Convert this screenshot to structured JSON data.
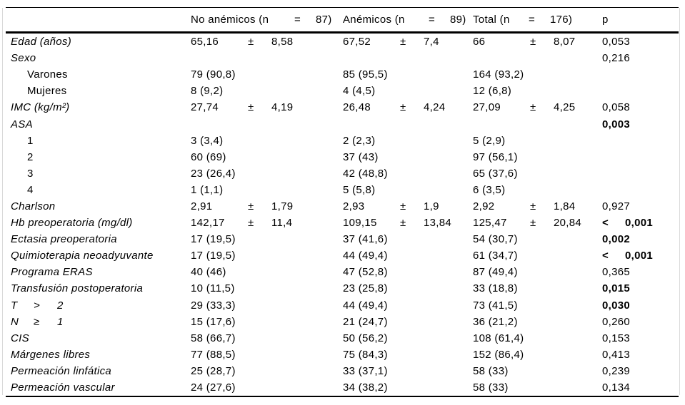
{
  "table": {
    "header": {
      "label": "",
      "columns": [
        {
          "pre": "No anémicos (n",
          "eq": "=",
          "num": "87)"
        },
        {
          "pre": "Anémicos (n",
          "eq": "=",
          "num": "89)"
        },
        {
          "pre": "Total (n",
          "eq": "=",
          "176_num": "",
          "num": "176)"
        },
        {
          "pre": "p"
        }
      ]
    },
    "rows": [
      {
        "label": "Edad (años)",
        "style": "italic",
        "cells": [
          {
            "v": "65,16",
            "pm": "±",
            "sd": "8,58"
          },
          {
            "v": "67,52",
            "pm": "±",
            "sd": "7,4"
          },
          {
            "v": "66",
            "pm": "±",
            "sd": "8,07"
          }
        ],
        "p": {
          "t": "0,053",
          "bold": false
        }
      },
      {
        "label": "Sexo",
        "style": "italic",
        "cells": [
          null,
          null,
          null
        ],
        "p": {
          "t": "0,216",
          "bold": false
        }
      },
      {
        "label": "Varones",
        "style": "indent",
        "cells": [
          {
            "t": "79 (90,8)"
          },
          {
            "t": "85 (95,5)"
          },
          {
            "t": "164 (93,2)"
          }
        ],
        "p": null
      },
      {
        "label": "Mujeres",
        "style": "indent",
        "cells": [
          {
            "t": "8 (9,2)"
          },
          {
            "t": "4 (4,5)"
          },
          {
            "t": "12 (6,8)"
          }
        ],
        "p": null
      },
      {
        "label": "IMC (kg/m²)",
        "style": "italic",
        "cells": [
          {
            "v": "27,74",
            "pm": "±",
            "sd": "4,19"
          },
          {
            "v": "26,48",
            "pm": "±",
            "sd": "4,24"
          },
          {
            "v": "27,09",
            "pm": "±",
            "sd": "4,25"
          }
        ],
        "p": {
          "t": "0,058",
          "bold": false
        }
      },
      {
        "label": "ASA",
        "style": "italic",
        "cells": [
          null,
          null,
          null
        ],
        "p": {
          "t": "0,003",
          "bold": true
        }
      },
      {
        "label": "1",
        "style": "indent",
        "cells": [
          {
            "t": "3 (3,4)"
          },
          {
            "t": "2 (2,3)"
          },
          {
            "t": "5 (2,9)"
          }
        ],
        "p": null
      },
      {
        "label": "2",
        "style": "indent",
        "cells": [
          {
            "t": "60 (69)"
          },
          {
            "t": "37 (43)"
          },
          {
            "t": "97 (56,1)"
          }
        ],
        "p": null
      },
      {
        "label": "3",
        "style": "indent",
        "cells": [
          {
            "t": "23 (26,4)"
          },
          {
            "t": "42 (48,8)"
          },
          {
            "t": "65 (37,6)"
          }
        ],
        "p": null
      },
      {
        "label": "4",
        "style": "indent",
        "cells": [
          {
            "t": "1 (1,1)"
          },
          {
            "t": "5 (5,8)"
          },
          {
            "t": "6 (3,5)"
          }
        ],
        "p": null
      },
      {
        "label": "Charlson",
        "style": "italic",
        "cells": [
          {
            "v": "2,91",
            "pm": "±",
            "sd": "1,79"
          },
          {
            "v": "2,93",
            "pm": "±",
            "sd": "1,9"
          },
          {
            "v": "2,92",
            "pm": "±",
            "sd": "1,84"
          }
        ],
        "p": {
          "t": "0,927",
          "bold": false
        }
      },
      {
        "label": "Hb preoperatoria (mg/dl)",
        "style": "italic",
        "cells": [
          {
            "v": "142,17",
            "pm": "±",
            "sd": "11,4"
          },
          {
            "v": "109,15",
            "pm": "±",
            "sd": "13,84"
          },
          {
            "v": "125,47",
            "pm": "±",
            "sd": "20,84"
          }
        ],
        "p": {
          "lt": "<",
          "t": "0,001",
          "bold": true
        }
      },
      {
        "label": "Ectasia preoperatoria",
        "style": "italic",
        "cells": [
          {
            "t": "17 (19,5)"
          },
          {
            "t": "37 (41,6)"
          },
          {
            "t": "54 (30,7)"
          }
        ],
        "p": {
          "t": "0,002",
          "bold": true
        }
      },
      {
        "label": "Quimioterapia neoadyuvante",
        "style": "italic",
        "cells": [
          {
            "t": "17 (19,5)"
          },
          {
            "t": "44 (49,4)"
          },
          {
            "t": "61 (34,7)"
          }
        ],
        "p": {
          "lt": "<",
          "t": "0,001",
          "bold": true
        }
      },
      {
        "label": "Programa ERAS",
        "style": "italic",
        "cells": [
          {
            "t": "40 (46)"
          },
          {
            "t": "47 (52,8)"
          },
          {
            "t": "87 (49,4)"
          }
        ],
        "p": {
          "t": "0,365",
          "bold": false
        }
      },
      {
        "label": "Transfusión postoperatoria",
        "style": "italic",
        "cells": [
          {
            "t": "10 (11,5)"
          },
          {
            "t": "23 (25,8)"
          },
          {
            "t": "33 (18,8)"
          }
        ],
        "p": {
          "t": "0,015",
          "bold": true
        }
      },
      {
        "label_parts": [
          "T",
          ">",
          "2"
        ],
        "style": "italic",
        "cells": [
          {
            "t": "29 (33,3)"
          },
          {
            "t": "44 (49,4)"
          },
          {
            "t": "73 (41,5)"
          }
        ],
        "p": {
          "t": "0,030",
          "bold": true
        }
      },
      {
        "label_parts": [
          "N",
          "≥",
          "1"
        ],
        "style": "italic",
        "cells": [
          {
            "t": "15 (17,6)"
          },
          {
            "t": "21 (24,7)"
          },
          {
            "t": "36 (21,2)"
          }
        ],
        "p": {
          "t": "0,260",
          "bold": false
        }
      },
      {
        "label": "CIS",
        "style": "italic",
        "cells": [
          {
            "t": "58 (66,7)"
          },
          {
            "t": "50 (56,2)"
          },
          {
            "t": "108 (61,4)"
          }
        ],
        "p": {
          "t": "0,153",
          "bold": false
        }
      },
      {
        "label": "Márgenes libres",
        "style": "italic",
        "cells": [
          {
            "t": "77 (88,5)"
          },
          {
            "t": "75 (84,3)"
          },
          {
            "t": "152 (86,4)"
          }
        ],
        "p": {
          "t": "0,413",
          "bold": false
        }
      },
      {
        "label": "Permeación linfática",
        "style": "italic",
        "cells": [
          {
            "t": "25 (28,7)"
          },
          {
            "t": "33 (37,1)"
          },
          {
            "t": "58 (33)"
          }
        ],
        "p": {
          "t": "0,239",
          "bold": false
        }
      },
      {
        "label": "Permeación vascular",
        "style": "italic",
        "cells": [
          {
            "t": "24 (27,6)"
          },
          {
            "t": "34 (38,2)"
          },
          {
            "t": "58 (33)"
          }
        ],
        "p": {
          "t": "0,134",
          "bold": false
        }
      }
    ]
  }
}
